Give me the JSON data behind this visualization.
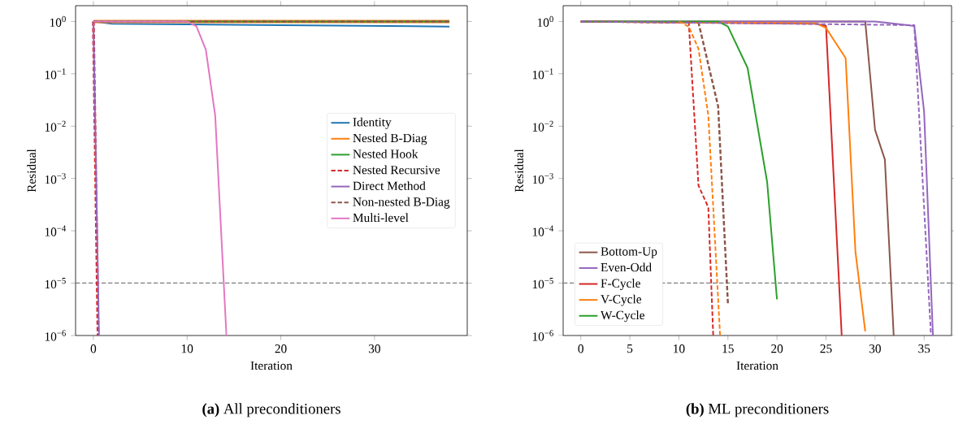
{
  "chart_data": [
    {
      "type": "line",
      "title": "**(a)** All preconditioners",
      "xlabel": "Iteration",
      "ylabel": "Residual",
      "log": "y",
      "legend": "center right",
      "xlim": [
        -1.9,
        39.9
      ],
      "ylim": [
        1e-06,
        2
      ],
      "xticks": [
        0,
        10,
        20,
        30
      ],
      "yticks": [
        {
          "value": 1e-06,
          "label": "10$^{−6}$"
        },
        {
          "value": 1e-05,
          "label": "10$^{−5}$"
        },
        {
          "value": 0.0001,
          "label": "10$^{−4}$"
        },
        {
          "value": 0.001,
          "label": "10$^{−3}$"
        },
        {
          "value": 0.01,
          "label": "10$^{−2}$"
        },
        {
          "value": 0.1,
          "label": "10$^{−1}$"
        },
        {
          "value": 1,
          "label": "10$^{0}$"
        }
      ],
      "ref_lines": [
        {
          "axis": "y",
          "value": 1e-05,
          "color": "#7f7f7f",
          "line_style": "dashed"
        }
      ],
      "series": [
        {
          "name": "Identity",
          "color": "#1f77b4",
          "x": [
            0,
            2,
            10,
            20,
            38
          ],
          "values": [
            1,
            0.9,
            0.88,
            0.85,
            0.8
          ]
        },
        {
          "name": "Nested B-Diag",
          "color": "#ff7f0e",
          "x": [
            0,
            38
          ],
          "values": [
            1,
            1
          ]
        },
        {
          "name": "Nested Hook",
          "color": "#2ca02c",
          "x": [
            0,
            38
          ],
          "values": [
            1,
            1
          ]
        },
        {
          "name": "Nested Recursive",
          "color": "#d62728",
          "line_style": "dashed",
          "x": [
            0,
            0.5
          ],
          "values": [
            1,
            1e-06
          ]
        },
        {
          "name": "Direct Method",
          "color": "#9467bd",
          "x": [
            0,
            0.6
          ],
          "values": [
            1,
            1e-06
          ]
        },
        {
          "name": "Non-nested B-Diag",
          "color": "#8c564b",
          "line_style": "dashed",
          "x": [
            0,
            38
          ],
          "values": [
            1,
            1
          ]
        },
        {
          "name": "Multi-level",
          "color": "#e377c2",
          "x": [
            0,
            10,
            11,
            12,
            13,
            14.2
          ],
          "values": [
            1,
            1,
            0.81,
            0.29,
            0.016,
            1e-06
          ]
        }
      ]
    },
    {
      "type": "line",
      "title": "**(b)** ML preconditioners",
      "xlabel": "Iteration",
      "ylabel": "Residual",
      "log": "y",
      "legend": "bottom left",
      "xlim": [
        -1.8,
        37.8
      ],
      "ylim": [
        1e-06,
        2
      ],
      "xticks": [
        0,
        5,
        10,
        15,
        20,
        25,
        30,
        35
      ],
      "yticks": [
        {
          "value": 1e-06,
          "label": "10$^{−6}$"
        },
        {
          "value": 1e-05,
          "label": "10$^{−5}$"
        },
        {
          "value": 0.0001,
          "label": "10$^{−4}$"
        },
        {
          "value": 0.001,
          "label": "10$^{−3}$"
        },
        {
          "value": 0.01,
          "label": "10$^{−2}$"
        },
        {
          "value": 0.1,
          "label": "10$^{−1}$"
        },
        {
          "value": 1,
          "label": "10$^{0}$"
        }
      ],
      "ref_lines": [
        {
          "axis": "y",
          "value": 1e-05,
          "color": "#7f7f7f",
          "line_style": "dashed"
        }
      ],
      "series": [
        {
          "name": "Bottom-Up",
          "color": "#8c564b",
          "x": [
            0,
            29,
            30,
            31,
            31.9
          ],
          "values": [
            1,
            1,
            0.0085,
            0.0023,
            1e-06
          ]
        },
        {
          "name": "Even-Odd",
          "color": "#9467bd",
          "x": [
            0,
            30,
            31,
            34,
            35,
            35.9
          ],
          "values": [
            1,
            1,
            0.95,
            0.82,
            0.019,
            1e-06
          ]
        },
        {
          "name": "F-Cycle",
          "color": "#d62728",
          "x": [
            0,
            24,
            25,
            26.6
          ],
          "values": [
            1,
            0.9,
            0.82,
            1e-06
          ]
        },
        {
          "name": "V-Cycle",
          "color": "#ff7f0e",
          "x": [
            0,
            24,
            25,
            27,
            28,
            29
          ],
          "values": [
            1,
            0.92,
            0.75,
            0.2,
            4e-05,
            1.2e-06
          ]
        },
        {
          "name": "W-Cycle",
          "color": "#2ca02c",
          "x": [
            0,
            14,
            15,
            17,
            19,
            20
          ],
          "values": [
            1,
            1,
            0.8,
            0.13,
            0.00085,
            4.9e-06
          ]
        },
        {
          "color": "#8c564b",
          "line_style": "dashed",
          "x": [
            0,
            12,
            14,
            15
          ],
          "values": [
            1,
            0.95,
            0.024,
            4e-06
          ]
        },
        {
          "color": "#d62728",
          "line_style": "dashed",
          "x": [
            11,
            12,
            13,
            13.5
          ],
          "values": [
            1,
            0.00073,
            0.00028,
            1e-06
          ]
        },
        {
          "color": "#9467bd",
          "line_style": "dashed",
          "x": [
            0,
            34,
            35.7
          ],
          "values": [
            1,
            0.85,
            1e-06
          ]
        },
        {
          "color": "#ff7f0e",
          "line_style": "dashed",
          "x": [
            10,
            11,
            12,
            13,
            14.2
          ],
          "values": [
            1,
            0.8,
            0.3,
            0.016,
            1e-06
          ]
        }
      ]
    }
  ]
}
